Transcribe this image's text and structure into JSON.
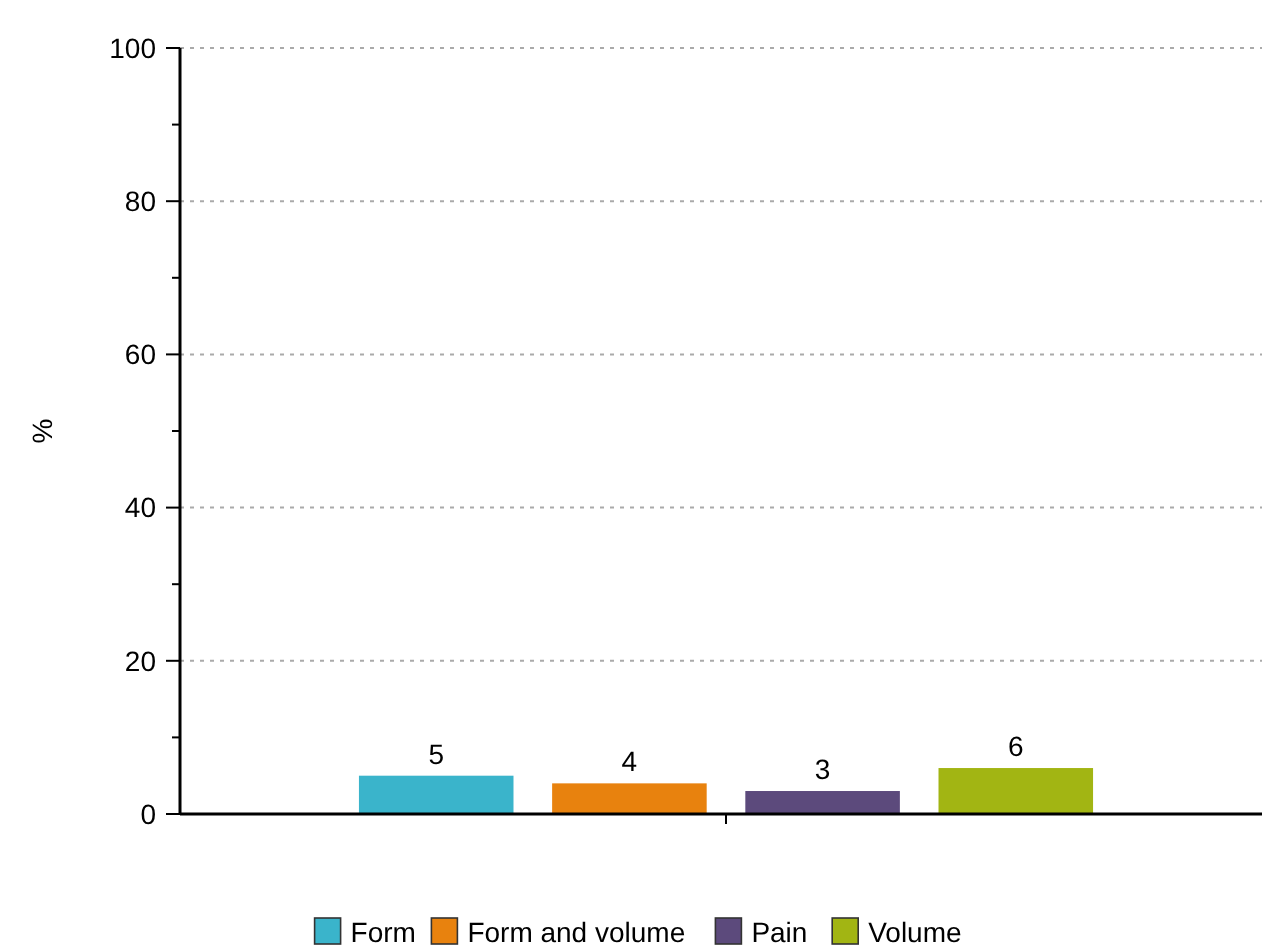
{
  "chart_data": {
    "type": "bar",
    "ylabel": "%",
    "categories": [
      null
    ],
    "series": [
      {
        "name": "Form",
        "color": "#3ab4cb",
        "values": [
          5
        ]
      },
      {
        "name": "Form and volume",
        "color": "#e8820e",
        "values": [
          4
        ]
      },
      {
        "name": "Pain",
        "color": "#5c4a7c",
        "values": [
          3
        ]
      },
      {
        "name": "Volume",
        "color": "#a2b513",
        "values": [
          6
        ]
      }
    ],
    "ylim": [
      0,
      100
    ],
    "yticks": [
      0,
      {
        "value": 10,
        "label": null
      },
      20,
      {
        "value": 30,
        "label": null
      },
      40,
      {
        "value": 50,
        "label": null
      },
      60,
      {
        "value": 70,
        "label": null
      },
      80,
      {
        "value": 90,
        "label": null
      },
      100
    ],
    "grid": "y",
    "legend": "bottom",
    "data_labels": true
  }
}
